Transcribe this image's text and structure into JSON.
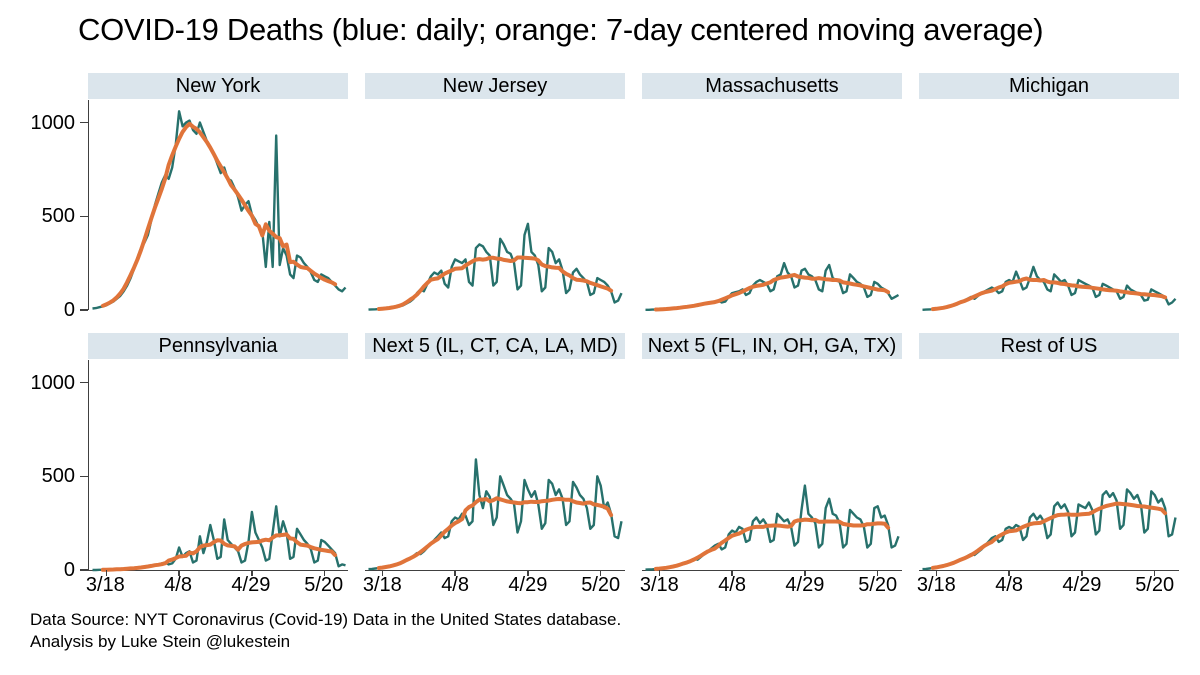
{
  "title": "COVID-19 Deaths (blue: daily; orange: 7-day centered moving average)",
  "footer": {
    "line1": "Data Source: NYT Coronavirus (Covid-19) Data in the United States database.",
    "line2": "Analysis by Luke Stein @lukestein"
  },
  "colors": {
    "daily": "#27716c",
    "moving_average": "#e0743a",
    "panel_header_bg": "#dbe5ec",
    "axis": "#404040"
  },
  "axes": {
    "y_ticks": [
      "1000",
      "500",
      "0"
    ],
    "y_tick_values": [
      1000,
      500,
      0
    ],
    "y_max_value": 1120,
    "x_ticks": [
      "3/18",
      "4/8",
      "4/29",
      "5/20"
    ],
    "x_tick_days": [
      4,
      25,
      46,
      67
    ],
    "x_domain": [
      -1,
      74
    ],
    "grid": "off",
    "legend": "in title"
  },
  "chart_data": {
    "type": "line",
    "layout": "small multiples, 2 rows x 4 columns",
    "dates": [
      "3/14",
      "3/15",
      "3/16",
      "3/17",
      "3/18",
      "3/19",
      "3/20",
      "3/21",
      "3/22",
      "3/23",
      "3/24",
      "3/25",
      "3/26",
      "3/27",
      "3/28",
      "3/29",
      "3/30",
      "3/31",
      "4/1",
      "4/2",
      "4/3",
      "4/4",
      "4/5",
      "4/6",
      "4/7",
      "4/8",
      "4/9",
      "4/10",
      "4/11",
      "4/12",
      "4/13",
      "4/14",
      "4/15",
      "4/16",
      "4/17",
      "4/18",
      "4/19",
      "4/20",
      "4/21",
      "4/22",
      "4/23",
      "4/24",
      "4/25",
      "4/26",
      "4/27",
      "4/28",
      "4/29",
      "4/30",
      "5/1",
      "5/2",
      "5/3",
      "5/4",
      "5/5",
      "5/6",
      "5/7",
      "5/8",
      "5/9",
      "5/10",
      "5/11",
      "5/12",
      "5/13",
      "5/14",
      "5/15",
      "5/16",
      "5/17",
      "5/18",
      "5/19",
      "5/20",
      "5/21",
      "5/22",
      "5/23",
      "5/24",
      "5/25",
      "5/26"
    ],
    "panels": [
      {
        "title": "New York",
        "series": [
          {
            "name": "daily",
            "values": [
              8,
              10,
              15,
              20,
              25,
              35,
              45,
              60,
              75,
              100,
              130,
              170,
              220,
              280,
              330,
              360,
              400,
              480,
              560,
              620,
              680,
              720,
              700,
              760,
              880,
              1060,
              980,
              1000,
              1010,
              960,
              940,
              1000,
              950,
              900,
              870,
              830,
              780,
              730,
              760,
              700,
              690,
              650,
              600,
              530,
              560,
              580,
              510,
              480,
              440,
              420,
              230,
              470,
              230,
              930,
              240,
              330,
              290,
              190,
              170,
              290,
              280,
              250,
              230,
              200,
              160,
              150,
              190,
              180,
              170,
              150,
              130,
              110,
              100,
              120
            ]
          },
          {
            "name": "7-day centered moving average",
            "derived_from": "daily",
            "window": 7
          }
        ]
      },
      {
        "title": "New Jersey",
        "series": [
          {
            "name": "daily",
            "values": [
              2,
              3,
              4,
              5,
              6,
              8,
              10,
              12,
              15,
              20,
              25,
              35,
              45,
              60,
              90,
              110,
              100,
              140,
              180,
              200,
              190,
              210,
              140,
              120,
              230,
              270,
              260,
              250,
              270,
              150,
              130,
              330,
              350,
              340,
              310,
              290,
              130,
              150,
              380,
              350,
              310,
              300,
              250,
              110,
              130,
              400,
              460,
              310,
              290,
              240,
              100,
              120,
              330,
              310,
              250,
              270,
              210,
              90,
              110,
              200,
              220,
              190,
              170,
              150,
              80,
              90,
              170,
              160,
              150,
              130,
              100,
              40,
              50,
              90
            ]
          },
          {
            "name": "7-day centered moving average",
            "derived_from": "daily",
            "window": 7
          }
        ]
      },
      {
        "title": "Massachusetts",
        "series": [
          {
            "name": "daily",
            "values": [
              1,
              1,
              2,
              2,
              3,
              4,
              5,
              6,
              8,
              10,
              12,
              14,
              16,
              20,
              25,
              22,
              28,
              33,
              38,
              42,
              46,
              50,
              40,
              45,
              70,
              90,
              95,
              100,
              110,
              80,
              90,
              130,
              150,
              160,
              150,
              140,
              100,
              110,
              180,
              190,
              250,
              200,
              180,
              120,
              130,
              210,
              220,
              190,
              180,
              160,
              110,
              100,
              210,
              240,
              170,
              160,
              150,
              90,
              100,
              190,
              170,
              150,
              140,
              120,
              70,
              80,
              150,
              140,
              120,
              110,
              90,
              60,
              70,
              80
            ]
          },
          {
            "name": "7-day centered moving average",
            "derived_from": "daily",
            "window": 7
          }
        ]
      },
      {
        "title": "Michigan",
        "series": [
          {
            "name": "daily",
            "values": [
              1,
              2,
              3,
              4,
              5,
              8,
              10,
              14,
              18,
              24,
              30,
              40,
              50,
              60,
              70,
              60,
              75,
              90,
              100,
              110,
              120,
              110,
              90,
              100,
              150,
              160,
              150,
              205,
              160,
              110,
              120,
              170,
              230,
              180,
              160,
              150,
              110,
              100,
              190,
              170,
              150,
              160,
              130,
              80,
              90,
              160,
              150,
              140,
              130,
              120,
              70,
              80,
              140,
              130,
              120,
              110,
              100,
              60,
              70,
              130,
              110,
              100,
              90,
              80,
              50,
              55,
              110,
              100,
              90,
              80,
              70,
              30,
              40,
              60
            ]
          },
          {
            "name": "7-day centered moving average",
            "derived_from": "daily",
            "window": 7
          }
        ]
      },
      {
        "title": "Pennsylvania",
        "series": [
          {
            "name": "daily",
            "values": [
              0,
              0,
              1,
              1,
              2,
              2,
              3,
              3,
              4,
              5,
              6,
              8,
              10,
              12,
              15,
              13,
              16,
              20,
              25,
              30,
              35,
              40,
              30,
              35,
              60,
              120,
              70,
              90,
              100,
              40,
              50,
              180,
              90,
              150,
              240,
              160,
              60,
              70,
              270,
              160,
              140,
              120,
              100,
              40,
              50,
              150,
              310,
              200,
              160,
              120,
              50,
              60,
              200,
              340,
              180,
              260,
              200,
              60,
              70,
              220,
              190,
              160,
              140,
              110,
              40,
              50,
              160,
              150,
              130,
              110,
              90,
              20,
              30,
              25
            ]
          },
          {
            "name": "7-day centered moving average",
            "derived_from": "daily",
            "window": 7
          }
        ]
      },
      {
        "title": "Next 5 (IL, CT, CA, LA, MD)",
        "series": [
          {
            "name": "daily",
            "values": [
              5,
              6,
              8,
              10,
              12,
              15,
              18,
              22,
              26,
              32,
              40,
              50,
              60,
              75,
              90,
              85,
              100,
              120,
              140,
              160,
              180,
              200,
              170,
              180,
              260,
              280,
              270,
              300,
              290,
              240,
              260,
              590,
              400,
              330,
              420,
              390,
              240,
              280,
              500,
              450,
              400,
              380,
              350,
              200,
              260,
              480,
              430,
              390,
              420,
              350,
              220,
              250,
              480,
              460,
              400,
              430,
              380,
              240,
              260,
              470,
              440,
              400,
              380,
              330,
              220,
              240,
              500,
              450,
              330,
              360,
              300,
              180,
              170,
              260
            ]
          },
          {
            "name": "7-day centered moving average",
            "derived_from": "daily",
            "window": 7
          }
        ]
      },
      {
        "title": "Next 5 (FL, IN, OH, GA, TX)",
        "series": [
          {
            "name": "daily",
            "values": [
              2,
              3,
              4,
              5,
              7,
              9,
              11,
              14,
              17,
              21,
              26,
              32,
              40,
              50,
              60,
              55,
              70,
              85,
              100,
              115,
              130,
              140,
              110,
              120,
              190,
              210,
              200,
              230,
              220,
              150,
              160,
              260,
              280,
              250,
              270,
              240,
              150,
              160,
              300,
              280,
              260,
              270,
              230,
              130,
              150,
              320,
              450,
              300,
              280,
              250,
              120,
              140,
              330,
              380,
              300,
              290,
              250,
              120,
              140,
              320,
              300,
              280,
              270,
              230,
              120,
              140,
              330,
              340,
              280,
              290,
              240,
              120,
              130,
              180
            ]
          },
          {
            "name": "7-day centered moving average",
            "derived_from": "daily",
            "window": 7
          }
        ]
      },
      {
        "title": "Rest of US",
        "series": [
          {
            "name": "daily",
            "values": [
              5,
              6,
              8,
              10,
              13,
              16,
              20,
              25,
              30,
              36,
              44,
              52,
              62,
              74,
              85,
              80,
              95,
              110,
              130,
              150,
              170,
              180,
              150,
              160,
              220,
              230,
              220,
              240,
              230,
              160,
              180,
              280,
              300,
              270,
              290,
              260,
              170,
              190,
              340,
              360,
              330,
              350,
              310,
              180,
              200,
              350,
              340,
              330,
              360,
              320,
              190,
              210,
              400,
              420,
              390,
              410,
              370,
              220,
              240,
              430,
              410,
              380,
              400,
              350,
              200,
              220,
              420,
              400,
              360,
              380,
              330,
              180,
              190,
              280
            ]
          },
          {
            "name": "7-day centered moving average",
            "derived_from": "daily",
            "window": 7
          }
        ]
      }
    ]
  }
}
